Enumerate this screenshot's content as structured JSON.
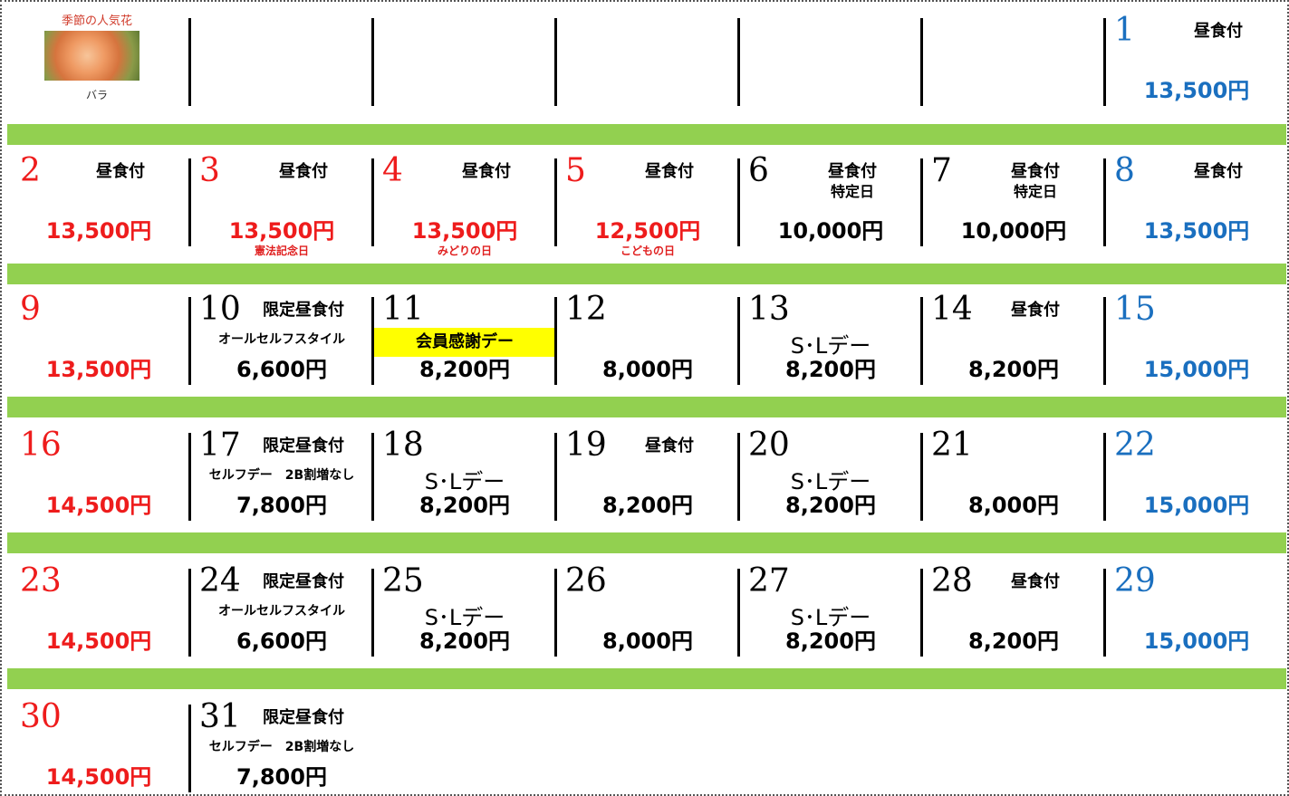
{
  "featured": {
    "label": "季節の人気花",
    "caption": "バラ"
  },
  "weeks": [
    [
      null,
      null,
      null,
      null,
      null,
      null,
      {
        "day": 1,
        "note": "昼食付",
        "price": "13,500円"
      }
    ],
    [
      {
        "day": 2,
        "note": "昼食付",
        "price": "13,500円"
      },
      {
        "day": 3,
        "note": "昼食付",
        "price": "13,500円",
        "holiday": "憲法記念日"
      },
      {
        "day": 4,
        "note": "昼食付",
        "price": "13,500円",
        "holiday": "みどりの日"
      },
      {
        "day": 5,
        "note": "昼食付",
        "price": "12,500円",
        "holiday": "こどもの日"
      },
      {
        "day": 6,
        "note": "昼食付",
        "sub": "特定日",
        "price": "10,000円"
      },
      {
        "day": 7,
        "note": "昼食付",
        "sub": "特定日",
        "price": "10,000円"
      },
      {
        "day": 8,
        "note": "昼食付",
        "price": "13,500円"
      }
    ],
    [
      {
        "day": 9,
        "price": "13,500円"
      },
      {
        "day": 10,
        "note": "限定昼食付",
        "sub": "オールセルフスタイル",
        "price": "6,600円"
      },
      {
        "day": 11,
        "badge": "会員感謝デー",
        "price": "8,200円"
      },
      {
        "day": 12,
        "price": "8,000円"
      },
      {
        "day": 13,
        "event": "S･Lデー",
        "price": "8,200円"
      },
      {
        "day": 14,
        "note": "昼食付",
        "price": "8,200円"
      },
      {
        "day": 15,
        "price": "15,000円"
      }
    ],
    [
      {
        "day": 16,
        "price": "14,500円"
      },
      {
        "day": 17,
        "note": "限定昼食付",
        "sub": "セルフデー　2B割増なし",
        "price": "7,800円"
      },
      {
        "day": 18,
        "event": "S･Lデー",
        "price": "8,200円"
      },
      {
        "day": 19,
        "note": "昼食付",
        "price": "8,200円"
      },
      {
        "day": 20,
        "event": "S･Lデー",
        "price": "8,200円"
      },
      {
        "day": 21,
        "price": "8,000円"
      },
      {
        "day": 22,
        "price": "15,000円"
      }
    ],
    [
      {
        "day": 23,
        "price": "14,500円"
      },
      {
        "day": 24,
        "note": "限定昼食付",
        "sub": "オールセルフスタイル",
        "price": "6,600円"
      },
      {
        "day": 25,
        "event": "S･Lデー",
        "price": "8,200円"
      },
      {
        "day": 26,
        "price": "8,000円"
      },
      {
        "day": 27,
        "event": "S･Lデー",
        "price": "8,200円"
      },
      {
        "day": 28,
        "note": "昼食付",
        "price": "8,200円"
      },
      {
        "day": 29,
        "price": "15,000円"
      }
    ],
    [
      {
        "day": 30,
        "price": "14,500円"
      },
      {
        "day": 31,
        "note": "限定昼食付",
        "sub": "セルフデー　2B割増なし",
        "price": "7,800円"
      }
    ]
  ]
}
